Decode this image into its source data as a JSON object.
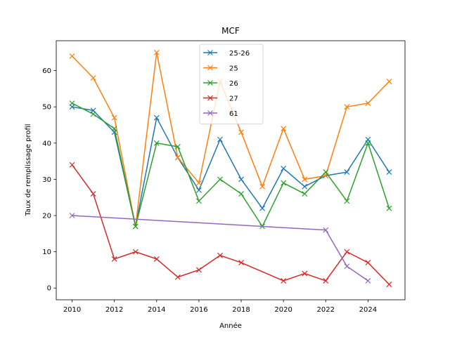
{
  "chart_data": {
    "type": "line",
    "title": "MCF",
    "xlabel": "Année",
    "ylabel": "Taux de remplissage profil",
    "xlim": [
      2009.25,
      2025.75
    ],
    "ylim": [
      -3.25,
      68.25
    ],
    "xticks": [
      2010,
      2012,
      2014,
      2016,
      2018,
      2020,
      2022,
      2024
    ],
    "yticks": [
      0,
      10,
      20,
      30,
      40,
      50,
      60
    ],
    "grid": false,
    "legend_position": "top-center",
    "marker": "x",
    "series": [
      {
        "name": "25-26",
        "color": "#1f77b4",
        "x": [
          2010,
          2011,
          2012,
          2013,
          2014,
          2015,
          2016,
          2017,
          2018,
          2019,
          2020,
          2021,
          2022,
          2023,
          2024,
          2025
        ],
        "y": [
          50,
          49,
          43,
          17,
          47,
          36,
          27,
          41,
          30,
          22,
          33,
          28,
          31,
          32,
          41,
          32
        ]
      },
      {
        "name": "25",
        "color": "#ff7f0e",
        "x": [
          2010,
          2011,
          2012,
          2013,
          2014,
          2015,
          2016,
          2017,
          2018,
          2019,
          2020,
          2021,
          2022,
          2023,
          2024,
          2025
        ],
        "y": [
          64,
          58,
          47,
          17,
          65,
          36,
          29,
          57,
          43,
          28,
          44,
          30,
          31,
          50,
          51,
          57
        ]
      },
      {
        "name": "26",
        "color": "#2ca02c",
        "x": [
          2010,
          2011,
          2012,
          2013,
          2014,
          2015,
          2016,
          2017,
          2018,
          2019,
          2020,
          2021,
          2022,
          2023,
          2024,
          2025
        ],
        "y": [
          51,
          48,
          44,
          17,
          40,
          39,
          24,
          30,
          26,
          17,
          29,
          26,
          32,
          24,
          40,
          22
        ]
      },
      {
        "name": "27",
        "color": "#d62728",
        "x": [
          2010,
          2011,
          2012,
          2013,
          2014,
          2015,
          2016,
          2017,
          2018,
          2020,
          2021,
          2022,
          2023,
          2024,
          2025
        ],
        "y": [
          34,
          26,
          8,
          10,
          8,
          3,
          5,
          9,
          7,
          2,
          4,
          2,
          10,
          7,
          1
        ]
      },
      {
        "name": "61",
        "color": "#9467bd",
        "x": [
          2010,
          2022,
          2023,
          2024
        ],
        "y": [
          20,
          16,
          6,
          2
        ]
      }
    ]
  }
}
